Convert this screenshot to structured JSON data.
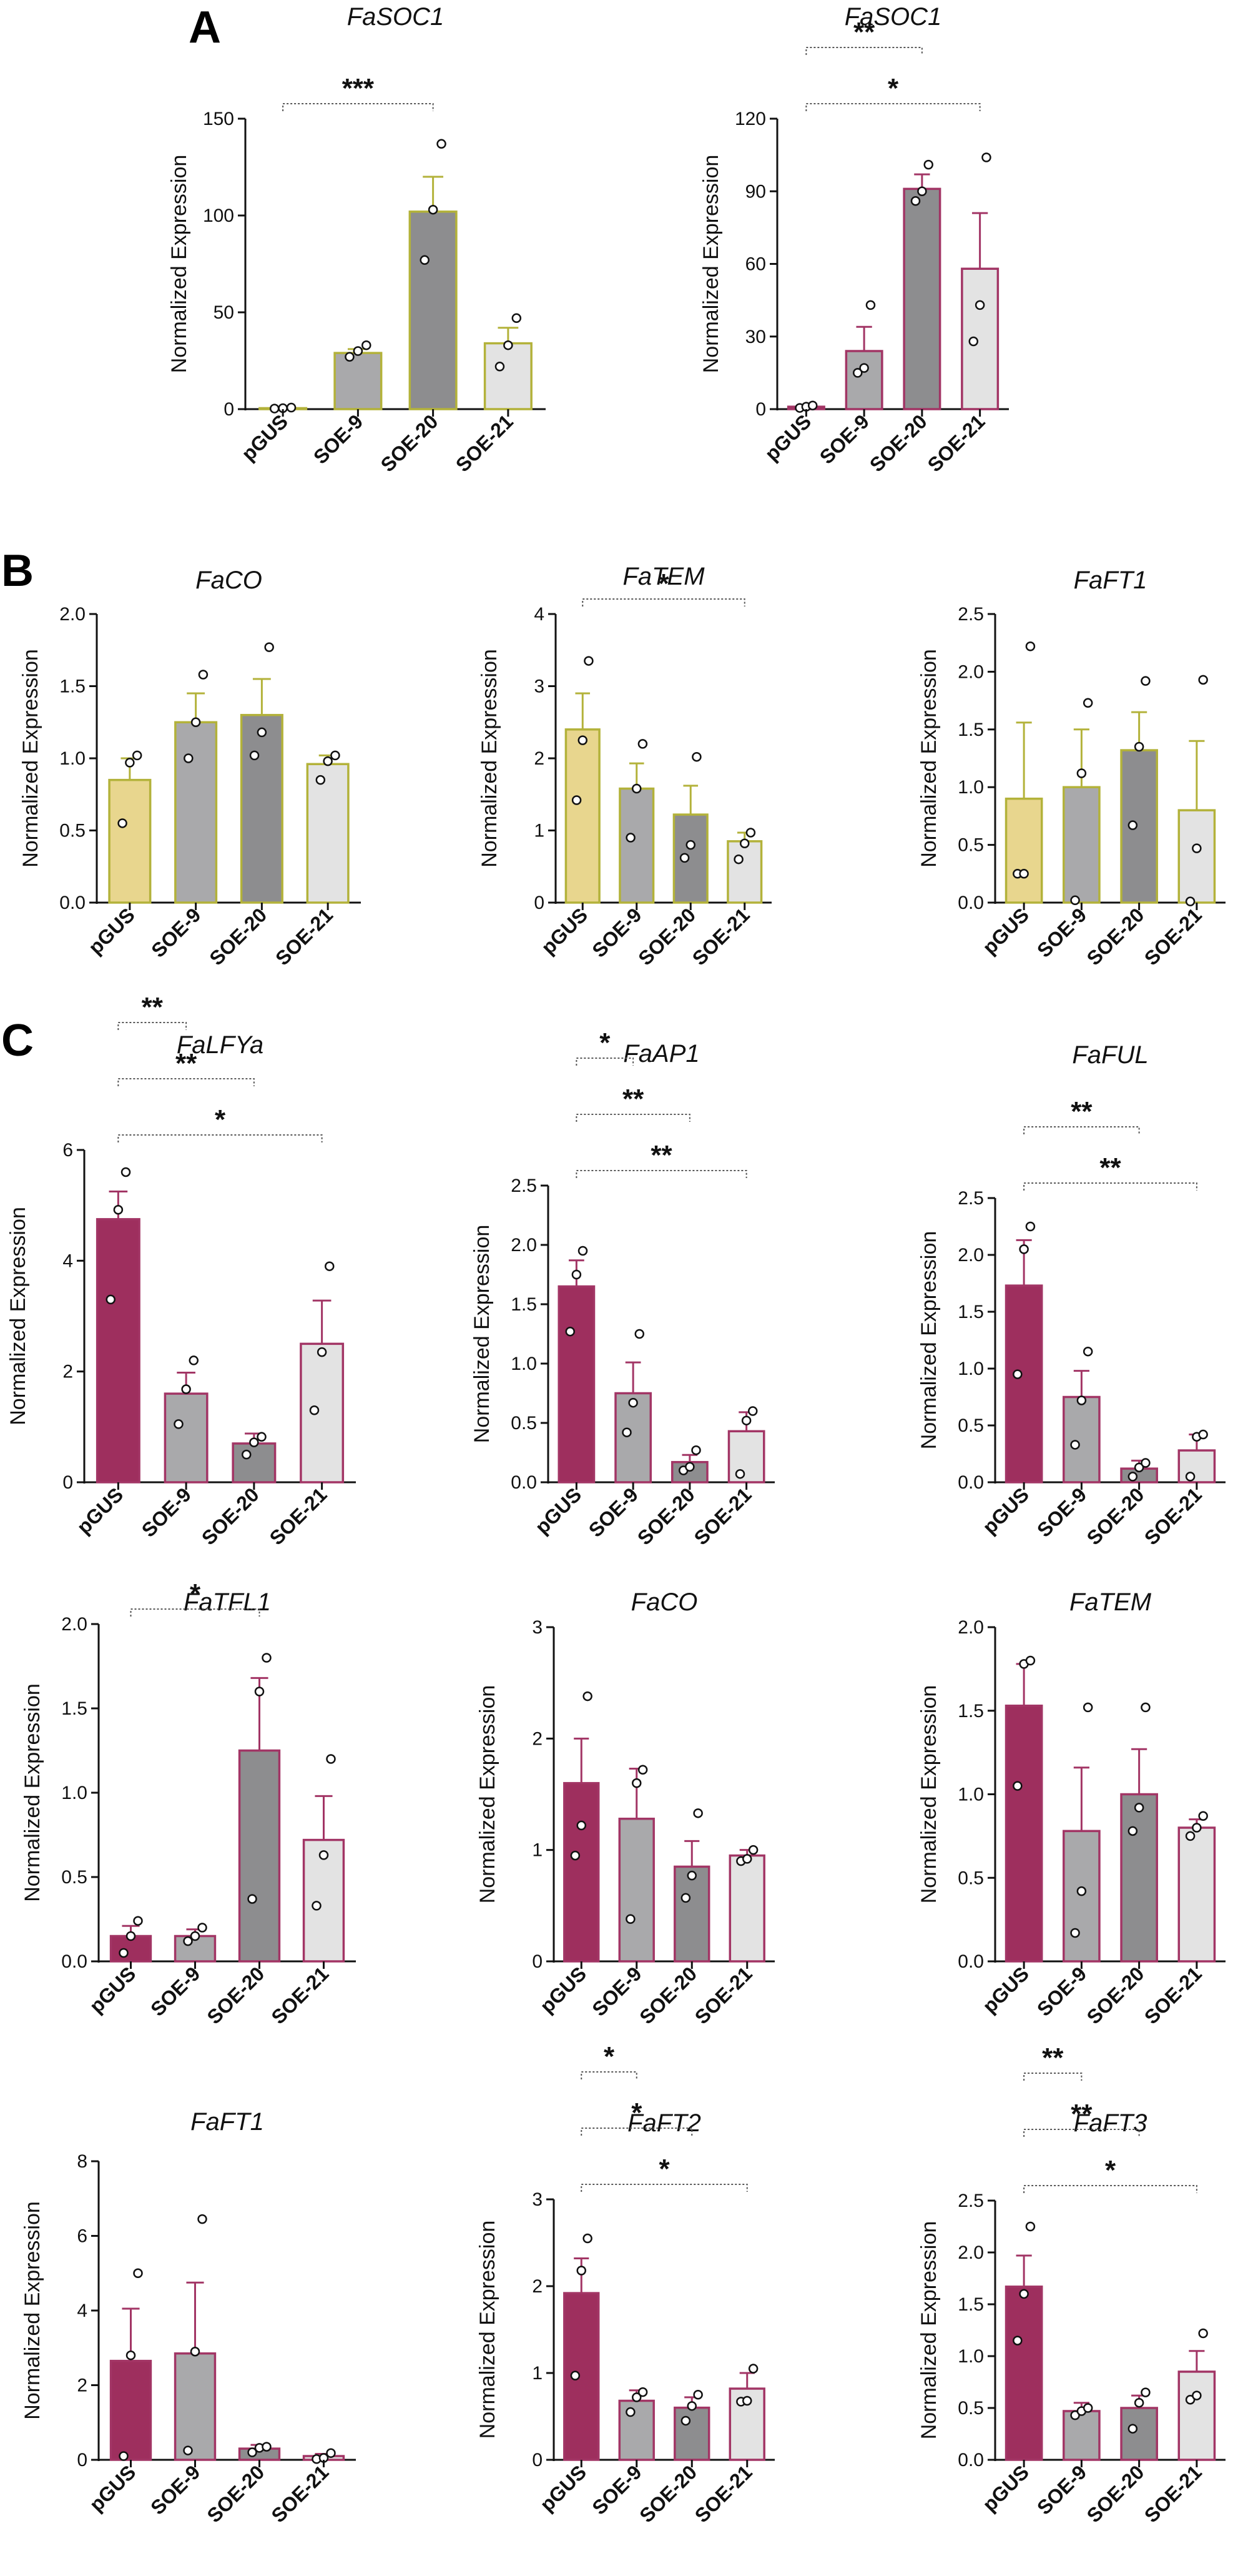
{
  "figure": {
    "panels": [
      "A",
      "B",
      "C"
    ]
  },
  "colors": {
    "light_gray": "#e3e3e3",
    "mid_gray": "#a9a9ab",
    "dark_gray": "#8d8d8f",
    "yellow": "#e8d68e",
    "magenta": "#9e2f5e",
    "olive_border": "#b3b23a",
    "magenta_border": "#a23565"
  },
  "chart_data": [
    {
      "id": "a1",
      "panel": "A",
      "type": "bar",
      "title": "FaSOC1",
      "ylabel": "Normalized Expression",
      "categories": [
        "pGUS",
        "SOE-9",
        "SOE-20",
        "SOE-21"
      ],
      "values": [
        0.5,
        29,
        102,
        34
      ],
      "errors": [
        0.3,
        2,
        18,
        8
      ],
      "points": [
        [
          0.3,
          0.5,
          0.8
        ],
        [
          27,
          30,
          33
        ],
        [
          77,
          103,
          137
        ],
        [
          22,
          33,
          47
        ]
      ],
      "ylim": [
        0,
        150
      ],
      "yticks": [
        0,
        50,
        100,
        150
      ],
      "tick_labels": [
        "0",
        "50",
        "100",
        "150"
      ],
      "fills": [
        "#e3e3e3",
        "#a9a9ab",
        "#8d8d8f",
        "#e3e3e3"
      ],
      "border": "#b3b23a",
      "significance": [
        {
          "from": 0,
          "to": 2,
          "label": "***"
        }
      ]
    },
    {
      "id": "a2",
      "panel": "A",
      "type": "bar",
      "title": "FaSOC1",
      "ylabel": "Normalized Expression",
      "categories": [
        "pGUS",
        "SOE-9",
        "SOE-20",
        "SOE-21"
      ],
      "values": [
        1,
        24,
        91,
        58
      ],
      "errors": [
        0.5,
        10,
        6,
        23
      ],
      "points": [
        [
          0.5,
          1,
          1.5
        ],
        [
          15,
          17,
          43
        ],
        [
          86,
          90,
          101
        ],
        [
          28,
          43,
          104
        ]
      ],
      "ylim": [
        0,
        120
      ],
      "yticks": [
        0,
        30,
        60,
        90,
        120
      ],
      "tick_labels": [
        "0",
        "30",
        "60",
        "90",
        "120"
      ],
      "fills": [
        "#9e2f5e",
        "#a9a9ab",
        "#8d8d8f",
        "#e3e3e3"
      ],
      "border": "#a23565",
      "significance": [
        {
          "from": 0,
          "to": 2,
          "label": "**"
        },
        {
          "from": 0,
          "to": 3,
          "label": "*"
        }
      ]
    },
    {
      "id": "b1",
      "panel": "B",
      "type": "bar",
      "title": "FaCO",
      "ylabel": "Normalized Expression",
      "categories": [
        "pGUS",
        "SOE-9",
        "SOE-20",
        "SOE-21"
      ],
      "values": [
        0.85,
        1.25,
        1.3,
        0.96
      ],
      "errors": [
        0.15,
        0.2,
        0.25,
        0.06
      ],
      "points": [
        [
          0.55,
          0.97,
          1.02
        ],
        [
          1.0,
          1.25,
          1.58
        ],
        [
          1.02,
          1.18,
          1.77
        ],
        [
          0.85,
          0.98,
          1.02
        ]
      ],
      "ylim": [
        0,
        2.0
      ],
      "yticks": [
        0,
        0.5,
        1.0,
        1.5,
        2.0
      ],
      "tick_labels": [
        "0.0",
        "0.5",
        "1.0",
        "1.5",
        "2.0"
      ],
      "fills": [
        "#e8d68e",
        "#a9a9ab",
        "#8d8d8f",
        "#e3e3e3"
      ],
      "border": "#b3b23a",
      "significance": []
    },
    {
      "id": "b2",
      "panel": "B",
      "type": "bar",
      "title": "FaTEM",
      "ylabel": "Normalized Expression",
      "categories": [
        "pGUS",
        "SOE-9",
        "SOE-20",
        "SOE-21"
      ],
      "values": [
        2.4,
        1.58,
        1.22,
        0.85
      ],
      "errors": [
        0.5,
        0.35,
        0.4,
        0.12
      ],
      "points": [
        [
          1.42,
          2.25,
          3.35
        ],
        [
          0.9,
          1.58,
          2.2
        ],
        [
          0.62,
          0.8,
          2.02
        ],
        [
          0.6,
          0.82,
          0.97
        ]
      ],
      "ylim": [
        0,
        4
      ],
      "yticks": [
        0,
        1,
        2,
        3,
        4
      ],
      "tick_labels": [
        "0",
        "1",
        "2",
        "3",
        "4"
      ],
      "fills": [
        "#e8d68e",
        "#a9a9ab",
        "#8d8d8f",
        "#e3e3e3"
      ],
      "border": "#b3b23a",
      "significance": [
        {
          "from": 0,
          "to": 3,
          "label": "*"
        }
      ]
    },
    {
      "id": "b3",
      "panel": "B",
      "type": "bar",
      "title": "FaFT1",
      "ylabel": "Normalized Expression",
      "categories": [
        "pGUS",
        "SOE-9",
        "SOE-20",
        "SOE-21"
      ],
      "values": [
        0.9,
        1.0,
        1.32,
        0.8
      ],
      "errors": [
        0.66,
        0.5,
        0.33,
        0.6
      ],
      "points": [
        [
          0.25,
          0.25,
          2.22
        ],
        [
          0.02,
          1.12,
          1.73
        ],
        [
          0.67,
          1.35,
          1.92
        ],
        [
          0.01,
          0.47,
          1.93
        ]
      ],
      "ylim": [
        0,
        2.5
      ],
      "yticks": [
        0,
        0.5,
        1.0,
        1.5,
        2.0,
        2.5
      ],
      "tick_labels": [
        "0.0",
        "0.5",
        "1.0",
        "1.5",
        "2.0",
        "2.5"
      ],
      "fills": [
        "#e8d68e",
        "#a9a9ab",
        "#8d8d8f",
        "#e3e3e3"
      ],
      "border": "#b3b23a",
      "significance": []
    },
    {
      "id": "c1",
      "panel": "C",
      "type": "bar",
      "title": "FaLFYa",
      "ylabel": "Normalized Expression",
      "categories": [
        "pGUS",
        "SOE-9",
        "SOE-20",
        "SOE-21"
      ],
      "values": [
        4.75,
        1.6,
        0.7,
        2.5
      ],
      "errors": [
        0.5,
        0.38,
        0.18,
        0.78
      ],
      "points": [
        [
          3.3,
          4.92,
          5.6
        ],
        [
          1.05,
          1.68,
          2.2
        ],
        [
          0.5,
          0.72,
          0.82
        ],
        [
          1.3,
          2.35,
          3.9
        ]
      ],
      "ylim": [
        0,
        6
      ],
      "yticks": [
        0,
        2,
        4,
        6
      ],
      "tick_labels": [
        "0",
        "2",
        "4",
        "6"
      ],
      "fills": [
        "#9e2f5e",
        "#a9a9ab",
        "#8d8d8f",
        "#e3e3e3"
      ],
      "border": "#a23565",
      "significance": [
        {
          "from": 0,
          "to": 1,
          "label": "**"
        },
        {
          "from": 0,
          "to": 2,
          "label": "**"
        },
        {
          "from": 0,
          "to": 3,
          "label": "*"
        }
      ]
    },
    {
      "id": "c2",
      "panel": "C",
      "type": "bar",
      "title": "FaAP1",
      "ylabel": "Normalized Expression",
      "categories": [
        "pGUS",
        "SOE-9",
        "SOE-20",
        "SOE-21"
      ],
      "values": [
        1.65,
        0.75,
        0.17,
        0.43
      ],
      "errors": [
        0.22,
        0.26,
        0.06,
        0.16
      ],
      "points": [
        [
          1.27,
          1.75,
          1.95
        ],
        [
          0.42,
          0.67,
          1.25
        ],
        [
          0.1,
          0.13,
          0.27
        ],
        [
          0.07,
          0.52,
          0.6
        ]
      ],
      "ylim": [
        0,
        2.5
      ],
      "yticks": [
        0,
        0.5,
        1.0,
        1.5,
        2.0,
        2.5
      ],
      "tick_labels": [
        "0.0",
        "0.5",
        "1.0",
        "1.5",
        "2.0",
        "2.5"
      ],
      "fills": [
        "#9e2f5e",
        "#a9a9ab",
        "#8d8d8f",
        "#e3e3e3"
      ],
      "border": "#a23565",
      "significance": [
        {
          "from": 0,
          "to": 1,
          "label": "*"
        },
        {
          "from": 0,
          "to": 2,
          "label": "**"
        },
        {
          "from": 0,
          "to": 3,
          "label": "**"
        }
      ]
    },
    {
      "id": "c3",
      "panel": "C",
      "type": "bar",
      "title": "FaFUL",
      "ylabel": "Normalized Expression",
      "categories": [
        "pGUS",
        "SOE-9",
        "SOE-20",
        "SOE-21"
      ],
      "values": [
        1.73,
        0.75,
        0.12,
        0.28
      ],
      "errors": [
        0.4,
        0.23,
        0.07,
        0.14
      ],
      "points": [
        [
          0.95,
          2.05,
          2.25
        ],
        [
          0.33,
          0.72,
          1.15
        ],
        [
          0.05,
          0.13,
          0.17
        ],
        [
          0.05,
          0.4,
          0.42
        ]
      ],
      "ylim": [
        0,
        2.5
      ],
      "yticks": [
        0,
        0.5,
        1.0,
        1.5,
        2.0,
        2.5
      ],
      "tick_labels": [
        "0.0",
        "0.5",
        "1.0",
        "1.5",
        "2.0",
        "2.5"
      ],
      "fills": [
        "#9e2f5e",
        "#a9a9ab",
        "#8d8d8f",
        "#e3e3e3"
      ],
      "border": "#a23565",
      "significance": [
        {
          "from": 0,
          "to": 2,
          "label": "**"
        },
        {
          "from": 0,
          "to": 3,
          "label": "**"
        }
      ]
    },
    {
      "id": "c4",
      "panel": "C",
      "type": "bar",
      "title": "FaTFL1",
      "ylabel": "Normalized Expression",
      "categories": [
        "pGUS",
        "SOE-9",
        "SOE-20",
        "SOE-21"
      ],
      "values": [
        0.15,
        0.15,
        1.25,
        0.72
      ],
      "errors": [
        0.06,
        0.04,
        0.43,
        0.26
      ],
      "points": [
        [
          0.05,
          0.15,
          0.24
        ],
        [
          0.12,
          0.15,
          0.2
        ],
        [
          0.37,
          1.6,
          1.8
        ],
        [
          0.33,
          0.63,
          1.2
        ]
      ],
      "ylim": [
        0,
        2.0
      ],
      "yticks": [
        0,
        0.5,
        1.0,
        1.5,
        2.0
      ],
      "tick_labels": [
        "0.0",
        "0.5",
        "1.0",
        "1.5",
        "2.0"
      ],
      "fills": [
        "#9e2f5e",
        "#a9a9ab",
        "#8d8d8f",
        "#e3e3e3"
      ],
      "border": "#a23565",
      "significance": [
        {
          "from": 0,
          "to": 2,
          "label": "*"
        }
      ]
    },
    {
      "id": "c5",
      "panel": "C",
      "type": "bar",
      "title": "FaCO",
      "ylabel": "Normalized Expression",
      "categories": [
        "pGUS",
        "SOE-9",
        "SOE-20",
        "SOE-21"
      ],
      "values": [
        1.6,
        1.28,
        0.85,
        0.95
      ],
      "errors": [
        0.4,
        0.45,
        0.23,
        0.05
      ],
      "points": [
        [
          0.95,
          1.22,
          2.38
        ],
        [
          0.38,
          1.6,
          1.72
        ],
        [
          0.57,
          0.77,
          1.33
        ],
        [
          0.9,
          0.92,
          1.0
        ]
      ],
      "ylim": [
        0,
        3
      ],
      "yticks": [
        0,
        1,
        2,
        3
      ],
      "tick_labels": [
        "0",
        "1",
        "2",
        "3"
      ],
      "fills": [
        "#9e2f5e",
        "#a9a9ab",
        "#8d8d8f",
        "#e3e3e3"
      ],
      "border": "#a23565",
      "significance": []
    },
    {
      "id": "c6",
      "panel": "C",
      "type": "bar",
      "title": "FaTEM",
      "ylabel": "Normalized Expression",
      "categories": [
        "pGUS",
        "SOE-9",
        "SOE-20",
        "SOE-21"
      ],
      "values": [
        1.53,
        0.78,
        1.0,
        0.8
      ],
      "errors": [
        0.25,
        0.38,
        0.27,
        0.05
      ],
      "points": [
        [
          1.05,
          1.78,
          1.8
        ],
        [
          0.17,
          0.42,
          1.52
        ],
        [
          0.78,
          0.92,
          1.52
        ],
        [
          0.75,
          0.8,
          0.87
        ]
      ],
      "ylim": [
        0,
        2.0
      ],
      "yticks": [
        0,
        0.5,
        1.0,
        1.5,
        2.0
      ],
      "tick_labels": [
        "0.0",
        "0.5",
        "1.0",
        "1.5",
        "2.0"
      ],
      "fills": [
        "#9e2f5e",
        "#a9a9ab",
        "#8d8d8f",
        "#e3e3e3"
      ],
      "border": "#a23565",
      "significance": []
    },
    {
      "id": "c7",
      "panel": "C",
      "type": "bar",
      "title": "FaFT1",
      "ylabel": "Normalized Expression",
      "categories": [
        "pGUS",
        "SOE-9",
        "SOE-20",
        "SOE-21"
      ],
      "values": [
        2.65,
        2.85,
        0.3,
        0.1
      ],
      "errors": [
        1.4,
        1.9,
        0.1,
        0.06
      ],
      "points": [
        [
          0.1,
          2.8,
          5.0
        ],
        [
          0.25,
          2.9,
          6.45
        ],
        [
          0.2,
          0.32,
          0.35
        ],
        [
          0.02,
          0.05,
          0.18
        ]
      ],
      "ylim": [
        0,
        8
      ],
      "yticks": [
        0,
        2,
        4,
        6,
        8
      ],
      "tick_labels": [
        "0",
        "2",
        "4",
        "6",
        "8"
      ],
      "fills": [
        "#9e2f5e",
        "#a9a9ab",
        "#8d8d8f",
        "#e3e3e3"
      ],
      "border": "#a23565",
      "significance": []
    },
    {
      "id": "c8",
      "panel": "C",
      "type": "bar",
      "title": "FaFT2",
      "ylabel": "Normalized Expression",
      "categories": [
        "pGUS",
        "SOE-9",
        "SOE-20",
        "SOE-21"
      ],
      "values": [
        1.92,
        0.68,
        0.6,
        0.82
      ],
      "errors": [
        0.4,
        0.12,
        0.12,
        0.18
      ],
      "points": [
        [
          0.97,
          2.18,
          2.55
        ],
        [
          0.55,
          0.72,
          0.78
        ],
        [
          0.45,
          0.62,
          0.75
        ],
        [
          0.67,
          0.68,
          1.05
        ]
      ],
      "ylim": [
        0,
        3
      ],
      "yticks": [
        0,
        1,
        2,
        3
      ],
      "tick_labels": [
        "0",
        "1",
        "2",
        "3"
      ],
      "fills": [
        "#9e2f5e",
        "#a9a9ab",
        "#8d8d8f",
        "#e3e3e3"
      ],
      "border": "#a23565",
      "significance": [
        {
          "from": 0,
          "to": 1,
          "label": "*"
        },
        {
          "from": 0,
          "to": 2,
          "label": "*"
        },
        {
          "from": 0,
          "to": 3,
          "label": "*"
        }
      ]
    },
    {
      "id": "c9",
      "panel": "C",
      "type": "bar",
      "title": "FaFT3",
      "ylabel": "Normalized Expression",
      "categories": [
        "pGUS",
        "SOE-9",
        "SOE-20",
        "SOE-21"
      ],
      "values": [
        1.67,
        0.47,
        0.5,
        0.85
      ],
      "errors": [
        0.3,
        0.08,
        0.12,
        0.2
      ],
      "points": [
        [
          1.15,
          1.6,
          2.25
        ],
        [
          0.43,
          0.47,
          0.5
        ],
        [
          0.3,
          0.55,
          0.65
        ],
        [
          0.58,
          0.62,
          1.22
        ]
      ],
      "ylim": [
        0,
        2.5
      ],
      "yticks": [
        0,
        0.5,
        1.0,
        1.5,
        2.0,
        2.5
      ],
      "tick_labels": [
        "0.0",
        "0.5",
        "1.0",
        "1.5",
        "2.0",
        "2.5"
      ],
      "fills": [
        "#9e2f5e",
        "#a9a9ab",
        "#8d8d8f",
        "#e3e3e3"
      ],
      "border": "#a23565",
      "significance": [
        {
          "from": 0,
          "to": 1,
          "label": "**"
        },
        {
          "from": 0,
          "to": 2,
          "label": "**"
        },
        {
          "from": 0,
          "to": 3,
          "label": "*"
        }
      ]
    }
  ]
}
